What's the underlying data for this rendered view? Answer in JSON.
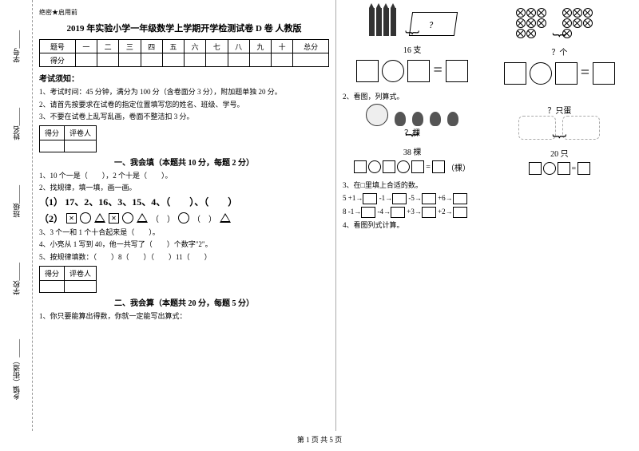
{
  "header": {
    "confidential": "绝密★启用前",
    "title": "2019 年实验小学一年级数学上学期开学检测试卷 D 卷 人教版"
  },
  "sidebar": {
    "items": [
      "学号_____",
      "姓名_____",
      "班级_____",
      "学校_____",
      "乡镇（街道）_____"
    ],
    "edge_labels": [
      "题",
      "内",
      "线",
      "封"
    ]
  },
  "score_table": {
    "row1": [
      "题号",
      "一",
      "二",
      "三",
      "四",
      "五",
      "六",
      "七",
      "八",
      "九",
      "十",
      "总分"
    ],
    "row2_label": "得分"
  },
  "instructions": {
    "heading": "考试须知：",
    "lines": [
      "1、考试时间：45 分钟，满分为 100 分（含卷面分 3 分），附加题单独 20 分。",
      "2、请首先按要求在试卷的指定位置填写您的姓名、班级、学号。",
      "3、不要在试卷上乱写乱画，卷面不整洁扣 3 分。"
    ]
  },
  "mini_score": {
    "c1": "得分",
    "c2": "评卷人"
  },
  "section1": {
    "title": "一、我会填（本题共 10 分，每题 2 分）",
    "q1": "1、10 个一是（　　），2 个十是（　　）。",
    "q2": "2、找规律，填一填，画一画。",
    "q2_line1_prefix": "（1）",
    "q2_line1": "17、2、16、3、15、4、（　　）、（　　）",
    "q2_line2_prefix": "（2）",
    "q3": "3、3 个一和 1 个十合起来是（　　）。",
    "q4": "4、小亮从 1 写到 40，他一共写了（　　）个数字\"2\"。",
    "q5": "5、按规律填数：（　　）8（　　）（　　）11（　　）"
  },
  "section2": {
    "title": "二、我会算（本题共 20 分，每题 5 分）",
    "q1": "1、你只要能算出得数，你就一定能写出算式："
  },
  "right": {
    "pencil_box": {
      "count_label": "16 支",
      "question_mark": "？"
    },
    "circles": {
      "label": "？个"
    },
    "q2_label": "2、看图，列算式。",
    "cabbage": {
      "question": "？棵",
      "total": "38 棵",
      "unit": "（棵）"
    },
    "chicks": {
      "question": "？只蛋",
      "total": "20 只"
    },
    "q3_label": "3、在□里填上合适的数。",
    "flow1": {
      "start": "5",
      "ops": [
        "+1",
        "-1",
        "-5",
        "+6"
      ]
    },
    "flow2": {
      "start": "8",
      "ops": [
        "-1",
        "-4",
        "+3",
        "+2"
      ]
    },
    "q4_label": "4、看图列式计算。"
  },
  "footer": "第 1 页 共 5 页"
}
